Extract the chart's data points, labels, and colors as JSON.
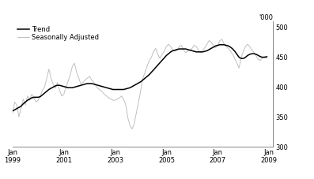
{
  "ylabel_right_top": "'000",
  "legend": [
    "Trend",
    "Seasonally Adjusted"
  ],
  "trend_color": "#000000",
  "seasonal_color": "#bbbbbb",
  "background_color": "#ffffff",
  "ylim": [
    300,
    510
  ],
  "yticks": [
    300,
    350,
    400,
    450,
    500
  ],
  "xtick_years": [
    1999,
    2001,
    2003,
    2005,
    2007,
    2009
  ],
  "trend_data": [
    360,
    362,
    364,
    366,
    368,
    372,
    375,
    378,
    380,
    382,
    383,
    383,
    383,
    384,
    387,
    390,
    393,
    396,
    398,
    400,
    402,
    403,
    403,
    402,
    401,
    400,
    399,
    399,
    399,
    400,
    401,
    402,
    403,
    404,
    405,
    406,
    406,
    406,
    405,
    404,
    403,
    402,
    401,
    400,
    399,
    398,
    397,
    396,
    396,
    396,
    396,
    396,
    396,
    397,
    398,
    399,
    401,
    403,
    405,
    407,
    409,
    412,
    415,
    418,
    421,
    425,
    429,
    433,
    437,
    441,
    445,
    449,
    453,
    456,
    459,
    461,
    462,
    463,
    464,
    464,
    464,
    464,
    463,
    462,
    461,
    460,
    459,
    459,
    459,
    459,
    460,
    461,
    463,
    465,
    467,
    469,
    470,
    471,
    471,
    471,
    470,
    469,
    467,
    464,
    460,
    455,
    450,
    448,
    448,
    450,
    453,
    455,
    456,
    456,
    455,
    453,
    451,
    450,
    450,
    451
  ],
  "seasonal_data": [
    355,
    375,
    370,
    350,
    365,
    380,
    370,
    385,
    378,
    388,
    382,
    375,
    378,
    385,
    395,
    400,
    415,
    430,
    415,
    405,
    398,
    408,
    395,
    385,
    388,
    400,
    410,
    420,
    435,
    440,
    425,
    415,
    405,
    408,
    412,
    415,
    418,
    412,
    408,
    402,
    398,
    395,
    392,
    388,
    385,
    382,
    380,
    378,
    378,
    380,
    382,
    385,
    380,
    370,
    348,
    335,
    330,
    340,
    358,
    375,
    395,
    415,
    425,
    435,
    445,
    450,
    460,
    465,
    455,
    448,
    455,
    460,
    468,
    472,
    468,
    462,
    460,
    462,
    468,
    470,
    462,
    458,
    460,
    462,
    465,
    470,
    468,
    462,
    458,
    462,
    466,
    472,
    478,
    475,
    470,
    466,
    470,
    478,
    480,
    472,
    468,
    465,
    460,
    455,
    448,
    440,
    432,
    450,
    460,
    468,
    472,
    468,
    462,
    458,
    452,
    446,
    445,
    450,
    452,
    448
  ],
  "xlim_start_year": 1999,
  "xlim_start_month": 1,
  "xlim_end_year": 2009,
  "xlim_end_month": 3
}
